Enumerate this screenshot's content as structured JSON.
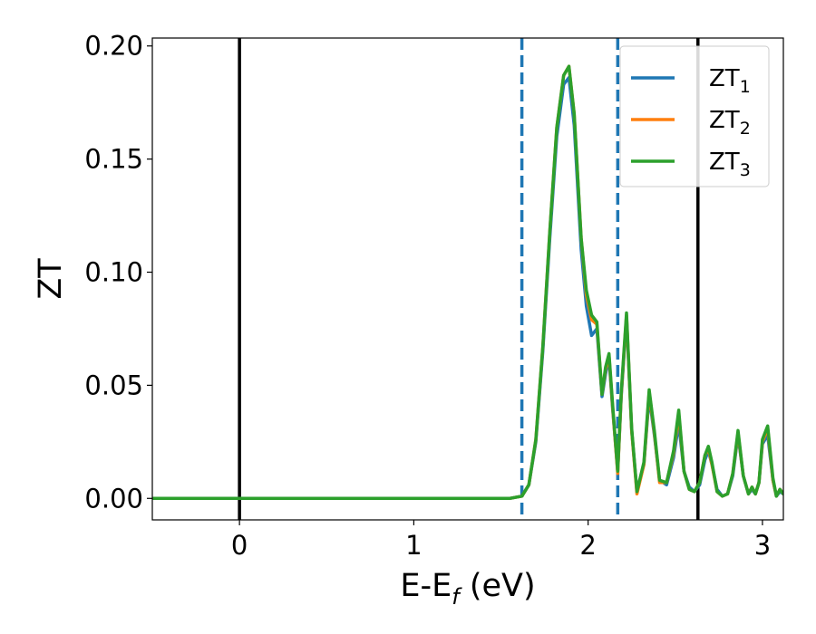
{
  "chart_data": {
    "type": "line",
    "xlabel": {
      "main": "E-E",
      "sub": "f",
      "unit": " (eV)"
    },
    "ylabel": "ZT",
    "xlim": [
      -0.5,
      3.12
    ],
    "ylim": [
      -0.0095,
      0.2035
    ],
    "x_ticks": [
      0,
      1,
      2,
      3
    ],
    "x_tick_labels": [
      "0",
      "1",
      "2",
      "3"
    ],
    "y_ticks": [
      0.0,
      0.05,
      0.1,
      0.15,
      0.2
    ],
    "y_tick_labels": [
      "0.00",
      "0.05",
      "0.10",
      "0.15",
      "0.20"
    ],
    "grid": false,
    "legend_position": "top-right",
    "vertical_lines": [
      {
        "x": 0.0,
        "style": "solid",
        "color": "#000000"
      },
      {
        "x": 1.62,
        "style": "dashed",
        "color": "#1f77b4"
      },
      {
        "x": 2.17,
        "style": "dashed",
        "color": "#1f77b4"
      },
      {
        "x": 2.63,
        "style": "solid",
        "color": "#000000"
      }
    ],
    "series": [
      {
        "name": "ZT",
        "sub": "1",
        "color": "#1f77b4",
        "x": [
          -0.5,
          1.55,
          1.62,
          1.66,
          1.7,
          1.74,
          1.78,
          1.82,
          1.86,
          1.89,
          1.92,
          1.96,
          1.99,
          2.02,
          2.05,
          2.08,
          2.1,
          2.12,
          2.14,
          2.17,
          2.19,
          2.22,
          2.25,
          2.28,
          2.32,
          2.35,
          2.38,
          2.41,
          2.45,
          2.49,
          2.52,
          2.55,
          2.58,
          2.61,
          2.64,
          2.67,
          2.69,
          2.71,
          2.74,
          2.77,
          2.8,
          2.83,
          2.86,
          2.89,
          2.92,
          2.94,
          2.96,
          2.98,
          3.0,
          3.03,
          3.06,
          3.08,
          3.1,
          3.12
        ],
        "y": [
          0.0,
          0.0,
          0.001,
          0.006,
          0.025,
          0.065,
          0.115,
          0.16,
          0.183,
          0.186,
          0.165,
          0.11,
          0.085,
          0.072,
          0.075,
          0.045,
          0.055,
          0.062,
          0.04,
          0.012,
          0.045,
          0.08,
          0.03,
          0.003,
          0.015,
          0.045,
          0.028,
          0.008,
          0.006,
          0.018,
          0.033,
          0.012,
          0.005,
          0.003,
          0.006,
          0.017,
          0.021,
          0.015,
          0.004,
          0.001,
          0.002,
          0.01,
          0.028,
          0.01,
          0.002,
          0.004,
          0.002,
          0.007,
          0.024,
          0.028,
          0.008,
          0.001,
          0.003,
          0.002
        ]
      },
      {
        "name": "ZT",
        "sub": "2",
        "color": "#ff7f0e",
        "x": [
          -0.5,
          1.55,
          1.62,
          1.66,
          1.7,
          1.74,
          1.78,
          1.82,
          1.86,
          1.89,
          1.92,
          1.96,
          1.99,
          2.02,
          2.05,
          2.08,
          2.1,
          2.12,
          2.14,
          2.17,
          2.19,
          2.22,
          2.25,
          2.28,
          2.32,
          2.35,
          2.38,
          2.41,
          2.45,
          2.49,
          2.52,
          2.55,
          2.58,
          2.61,
          2.64,
          2.67,
          2.69,
          2.71,
          2.74,
          2.77,
          2.8,
          2.83,
          2.86,
          2.89,
          2.92,
          2.94,
          2.96,
          2.98,
          3.0,
          3.03,
          3.06,
          3.08,
          3.1,
          3.12
        ],
        "y": [
          0.0,
          0.0,
          0.001,
          0.006,
          0.026,
          0.067,
          0.118,
          0.164,
          0.187,
          0.191,
          0.17,
          0.115,
          0.09,
          0.079,
          0.077,
          0.046,
          0.057,
          0.063,
          0.041,
          0.011,
          0.046,
          0.081,
          0.03,
          0.002,
          0.015,
          0.047,
          0.029,
          0.007,
          0.007,
          0.02,
          0.037,
          0.012,
          0.004,
          0.003,
          0.007,
          0.019,
          0.022,
          0.015,
          0.003,
          0.001,
          0.002,
          0.011,
          0.029,
          0.01,
          0.002,
          0.005,
          0.002,
          0.007,
          0.025,
          0.031,
          0.008,
          0.001,
          0.004,
          0.002
        ]
      },
      {
        "name": "ZT",
        "sub": "3",
        "color": "#2ca02c",
        "x": [
          -0.5,
          1.55,
          1.62,
          1.66,
          1.7,
          1.74,
          1.78,
          1.82,
          1.86,
          1.89,
          1.92,
          1.96,
          1.99,
          2.02,
          2.05,
          2.08,
          2.1,
          2.12,
          2.14,
          2.17,
          2.19,
          2.22,
          2.25,
          2.28,
          2.32,
          2.35,
          2.38,
          2.41,
          2.45,
          2.49,
          2.52,
          2.55,
          2.58,
          2.61,
          2.64,
          2.67,
          2.69,
          2.71,
          2.74,
          2.77,
          2.8,
          2.83,
          2.86,
          2.89,
          2.92,
          2.94,
          2.96,
          2.98,
          3.0,
          3.03,
          3.06,
          3.08,
          3.1,
          3.12
        ],
        "y": [
          0.0,
          0.0,
          0.001,
          0.006,
          0.026,
          0.067,
          0.118,
          0.164,
          0.187,
          0.191,
          0.17,
          0.115,
          0.092,
          0.081,
          0.078,
          0.046,
          0.058,
          0.064,
          0.042,
          0.012,
          0.047,
          0.082,
          0.031,
          0.003,
          0.016,
          0.048,
          0.03,
          0.008,
          0.007,
          0.021,
          0.039,
          0.012,
          0.004,
          0.003,
          0.007,
          0.019,
          0.023,
          0.016,
          0.003,
          0.001,
          0.002,
          0.011,
          0.03,
          0.01,
          0.002,
          0.005,
          0.002,
          0.007,
          0.026,
          0.032,
          0.009,
          0.001,
          0.004,
          0.002
        ]
      }
    ]
  }
}
